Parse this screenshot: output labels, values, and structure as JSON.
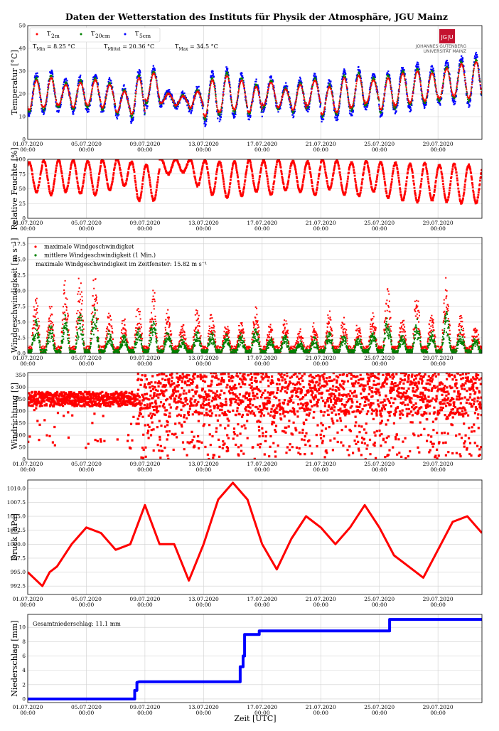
{
  "figure": {
    "title": "Daten der Wetterstation des Instituts für Physik der Atmosphäre, JGU Mainz",
    "xlabel": "Zeit [UTC]",
    "logo": {
      "badge": "JG|U",
      "line1": "JOHANNES GUTENBERG",
      "line2": "UNIVERSITÄT MAINZ"
    },
    "x_dates": [
      "01.07.2020",
      "05.07.2020",
      "09.07.2020",
      "13.07.2020",
      "17.07.2020",
      "21.07.2020",
      "25.07.2020",
      "29.07.2020"
    ],
    "x_time": "00:00",
    "colors": {
      "red": "#ff0000",
      "green": "#008000",
      "blue": "#0000ff",
      "grid": "#d0d0d0"
    }
  },
  "chart_data": [
    {
      "type": "scatter",
      "ylabel": "Temperatur [°C]",
      "ylim": [
        0,
        50
      ],
      "yticks": [
        "0",
        "10",
        "20",
        "30",
        "40",
        "50"
      ],
      "grid": true,
      "legend_position": "top-left",
      "series": [
        {
          "name": "T_2m",
          "label_main": "T",
          "label_sub": "2m",
          "color": "#ff0000"
        },
        {
          "name": "T_20cm",
          "label_main": "T",
          "label_sub": "20cm",
          "color": "#008000"
        },
        {
          "name": "T_5cm",
          "label_main": "T",
          "label_sub": "5cm",
          "color": "#0000ff"
        }
      ],
      "stats": [
        {
          "label": "T",
          "sub": "Min",
          "value": " = 8.25 °C"
        },
        {
          "label": "T",
          "sub": "Mittel",
          "value": " = 20.36 °C"
        },
        {
          "label": "T",
          "sub": "Max",
          "value": " = 34.5 °C"
        }
      ],
      "daily_minmax_T2m": [
        [
          13,
          26
        ],
        [
          14,
          27
        ],
        [
          15,
          24
        ],
        [
          14,
          25
        ],
        [
          15,
          26
        ],
        [
          14,
          24
        ],
        [
          12,
          21
        ],
        [
          11,
          27
        ],
        [
          17,
          29
        ],
        [
          16,
          20
        ],
        [
          15,
          19
        ],
        [
          14,
          21
        ],
        [
          10,
          26
        ],
        [
          12,
          28
        ],
        [
          13,
          26
        ],
        [
          12,
          23
        ],
        [
          15,
          25
        ],
        [
          14,
          22
        ],
        [
          13,
          24
        ],
        [
          15,
          26
        ],
        [
          11,
          23
        ],
        [
          12,
          27
        ],
        [
          14,
          28
        ],
        [
          16,
          26
        ],
        [
          13,
          27
        ],
        [
          15,
          29
        ],
        [
          16,
          30
        ],
        [
          17,
          29
        ],
        [
          18,
          31
        ],
        [
          19,
          33
        ],
        [
          18,
          34
        ]
      ]
    },
    {
      "type": "scatter",
      "ylabel": "Relative Feuchte [%]",
      "ylim": [
        0,
        100
      ],
      "yticks": [
        "0",
        "25",
        "50",
        "75",
        "100"
      ],
      "grid": true,
      "series": [
        {
          "name": "Relative Feuchte",
          "color": "#ff0000"
        }
      ],
      "daily_minmax": [
        [
          45,
          95
        ],
        [
          40,
          98
        ],
        [
          45,
          99
        ],
        [
          42,
          98
        ],
        [
          40,
          97
        ],
        [
          48,
          99
        ],
        [
          55,
          100
        ],
        [
          30,
          95
        ],
        [
          30,
          90
        ],
        [
          75,
          100
        ],
        [
          78,
          100
        ],
        [
          55,
          100
        ],
        [
          40,
          98
        ],
        [
          35,
          95
        ],
        [
          38,
          96
        ],
        [
          45,
          99
        ],
        [
          40,
          98
        ],
        [
          48,
          99
        ],
        [
          45,
          97
        ],
        [
          40,
          96
        ],
        [
          50,
          99
        ],
        [
          40,
          97
        ],
        [
          38,
          95
        ],
        [
          45,
          96
        ],
        [
          35,
          95
        ],
        [
          30,
          94
        ],
        [
          28,
          92
        ],
        [
          30,
          93
        ],
        [
          28,
          90
        ],
        [
          26,
          92
        ],
        [
          26,
          90
        ]
      ]
    },
    {
      "type": "scatter",
      "ylabel": "Windgeschwindigkeit [m s⁻¹]",
      "ylim": [
        0,
        18.5
      ],
      "yticks": [
        "0.0",
        "2.5",
        "5.0",
        "7.5",
        "10.0",
        "12.5",
        "15.0",
        "17.5"
      ],
      "grid": true,
      "legend_position": "top-left",
      "series": [
        {
          "name": "maximale Windgeschwindigket",
          "color": "#ff0000"
        },
        {
          "name": "mittlere Windgeschwindigkeit (1 Min.)",
          "color": "#008000"
        }
      ],
      "annotation": "maximale Windgeschwindigkeit im Zeitfenster: 15.82 m s⁻¹",
      "daily_peak_max": [
        9,
        8,
        11,
        12,
        13,
        6,
        5,
        7,
        10,
        6,
        4,
        7,
        6,
        5,
        5,
        7,
        4,
        5,
        3,
        4,
        6,
        5,
        4,
        6,
        10,
        5,
        9,
        6,
        12,
        6,
        4
      ]
    },
    {
      "type": "scatter",
      "ylabel": "Windrichtung [°]",
      "ylim": [
        0,
        360
      ],
      "yticks": [
        "0",
        "50",
        "100",
        "150",
        "200",
        "250",
        "300",
        "350"
      ],
      "grid": true,
      "series": [
        {
          "name": "Windrichtung",
          "color": "#ff0000"
        }
      ]
    },
    {
      "type": "line",
      "ylabel": "Druck [hPa]",
      "ylim": [
        991,
        1011.5
      ],
      "yticks": [
        "992.5",
        "995.0",
        "997.5",
        "1000.0",
        "1002.5",
        "1005.0",
        "1007.5",
        "1010.0"
      ],
      "grid": true,
      "series": [
        {
          "name": "Druck",
          "color": "#ff0000"
        }
      ],
      "x_days": [
        0,
        1,
        1.5,
        2,
        3,
        4,
        5,
        6,
        7,
        7.5,
        8,
        9,
        10,
        11,
        12,
        13,
        14,
        15,
        16,
        17,
        18,
        19,
        20,
        21,
        22,
        23,
        24,
        25,
        26,
        27,
        28,
        29,
        30,
        31
      ],
      "y": [
        995,
        992.5,
        995,
        996,
        1000,
        1003,
        1002,
        999,
        1000,
        1003.5,
        1007,
        1000,
        1000,
        993.5,
        1000,
        1008,
        1011,
        1008,
        1000,
        995.5,
        1001,
        1005,
        1003,
        1000,
        1003,
        1007,
        1003,
        998,
        996,
        994,
        999,
        1004,
        1005,
        1002
      ]
    },
    {
      "type": "line",
      "ylabel": "Niederschlag [mm]",
      "ylim": [
        -0.5,
        11.8
      ],
      "yticks": [
        "0",
        "2",
        "4",
        "6",
        "8",
        "10"
      ],
      "grid": true,
      "series": [
        {
          "name": "Niederschlag",
          "color": "#0000ff"
        }
      ],
      "annotation": "Gesamtniederschlag: 11.1 mm",
      "x_days": [
        0,
        7.3,
        7.3,
        7.45,
        7.45,
        7.6,
        14.5,
        14.5,
        14.7,
        14.7,
        14.8,
        14.8,
        15.8,
        15.8,
        24.7,
        24.7,
        31
      ],
      "y": [
        0,
        0,
        1.2,
        1.2,
        2.3,
        2.4,
        2.4,
        4.5,
        4.5,
        6,
        6,
        9,
        9,
        9.5,
        9.5,
        11.1,
        11.1
      ]
    }
  ]
}
